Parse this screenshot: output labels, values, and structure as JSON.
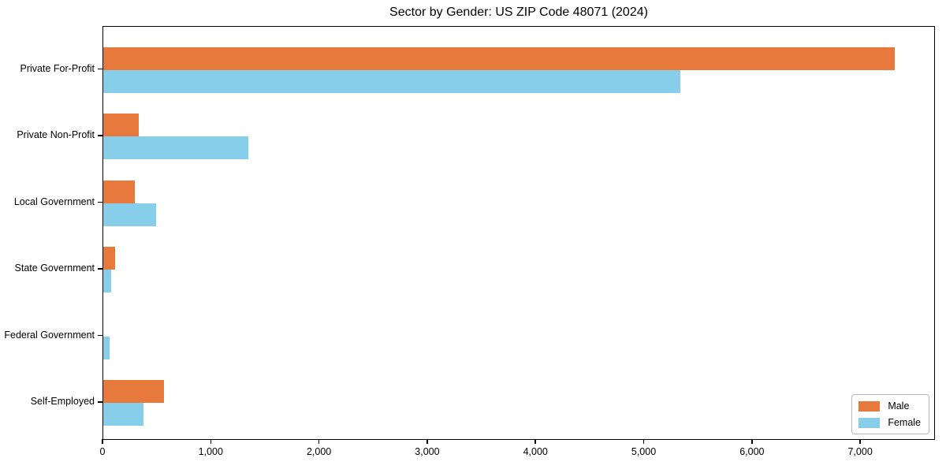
{
  "chart_data": {
    "type": "bar",
    "orientation": "horizontal",
    "title": "Sector by Gender: US ZIP Code 48071 (2024)",
    "categories": [
      "Private For-Profit",
      "Private Non-Profit",
      "Local Government",
      "State Government",
      "Federal Government",
      "Self-Employed"
    ],
    "series": [
      {
        "name": "Male",
        "color": "#e8793c",
        "values": [
          7310,
          330,
          290,
          110,
          0,
          560
        ]
      },
      {
        "name": "Female",
        "color": "#87ceeb",
        "values": [
          5330,
          1340,
          490,
          75,
          60,
          370
        ]
      }
    ],
    "xlim": [
      0,
      7680
    ],
    "x_ticks": [
      0,
      1000,
      2000,
      3000,
      4000,
      5000,
      6000,
      7000
    ],
    "x_tick_labels": [
      "0",
      "1,000",
      "2,000",
      "3,000",
      "4,000",
      "5,000",
      "6,000",
      "7,000"
    ],
    "xlabel": "",
    "ylabel": "",
    "grid": false,
    "legend_position": "lower right",
    "colors": {
      "axis": "#000000",
      "background": "#ffffff",
      "legend_border": "#b7b7b7"
    }
  }
}
